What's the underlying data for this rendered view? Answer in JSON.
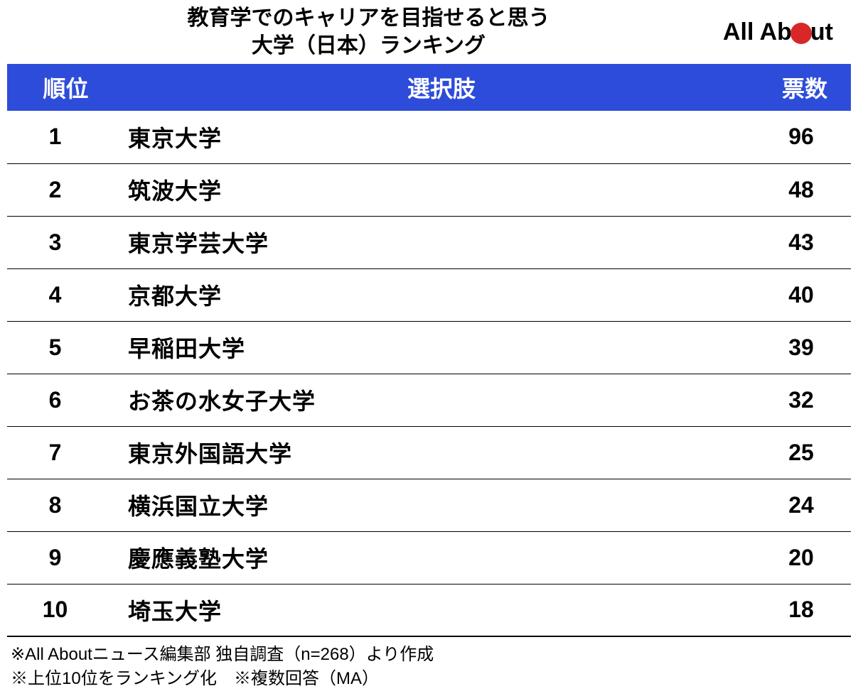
{
  "title": {
    "line1": "教育学でのキャリアを目指せると思う",
    "line2": "大学（日本）ランキング"
  },
  "logo": {
    "part1": "All Ab",
    "part2": "ut"
  },
  "table": {
    "header_bg": "#2d4cd9",
    "header_fg": "#ffffff",
    "border_color": "#000000",
    "columns": {
      "rank": "順位",
      "choice": "選択肢",
      "votes": "票数"
    },
    "rows": [
      {
        "rank": "1",
        "choice": "東京大学",
        "votes": "96"
      },
      {
        "rank": "2",
        "choice": "筑波大学",
        "votes": "48"
      },
      {
        "rank": "3",
        "choice": "東京学芸大学",
        "votes": "43"
      },
      {
        "rank": "4",
        "choice": "京都大学",
        "votes": "40"
      },
      {
        "rank": "5",
        "choice": "早稲田大学",
        "votes": "39"
      },
      {
        "rank": "6",
        "choice": "お茶の水女子大学",
        "votes": "32"
      },
      {
        "rank": "7",
        "choice": "東京外国語大学",
        "votes": "25"
      },
      {
        "rank": "8",
        "choice": "横浜国立大学",
        "votes": "24"
      },
      {
        "rank": "9",
        "choice": "慶應義塾大学",
        "votes": "20"
      },
      {
        "rank": "10",
        "choice": "埼玉大学",
        "votes": "18"
      }
    ]
  },
  "footnotes": {
    "line1": "※All Aboutニュース編集部 独自調査（n=268）より作成",
    "line2": "※上位10位をランキング化　※複数回答（MA）"
  }
}
